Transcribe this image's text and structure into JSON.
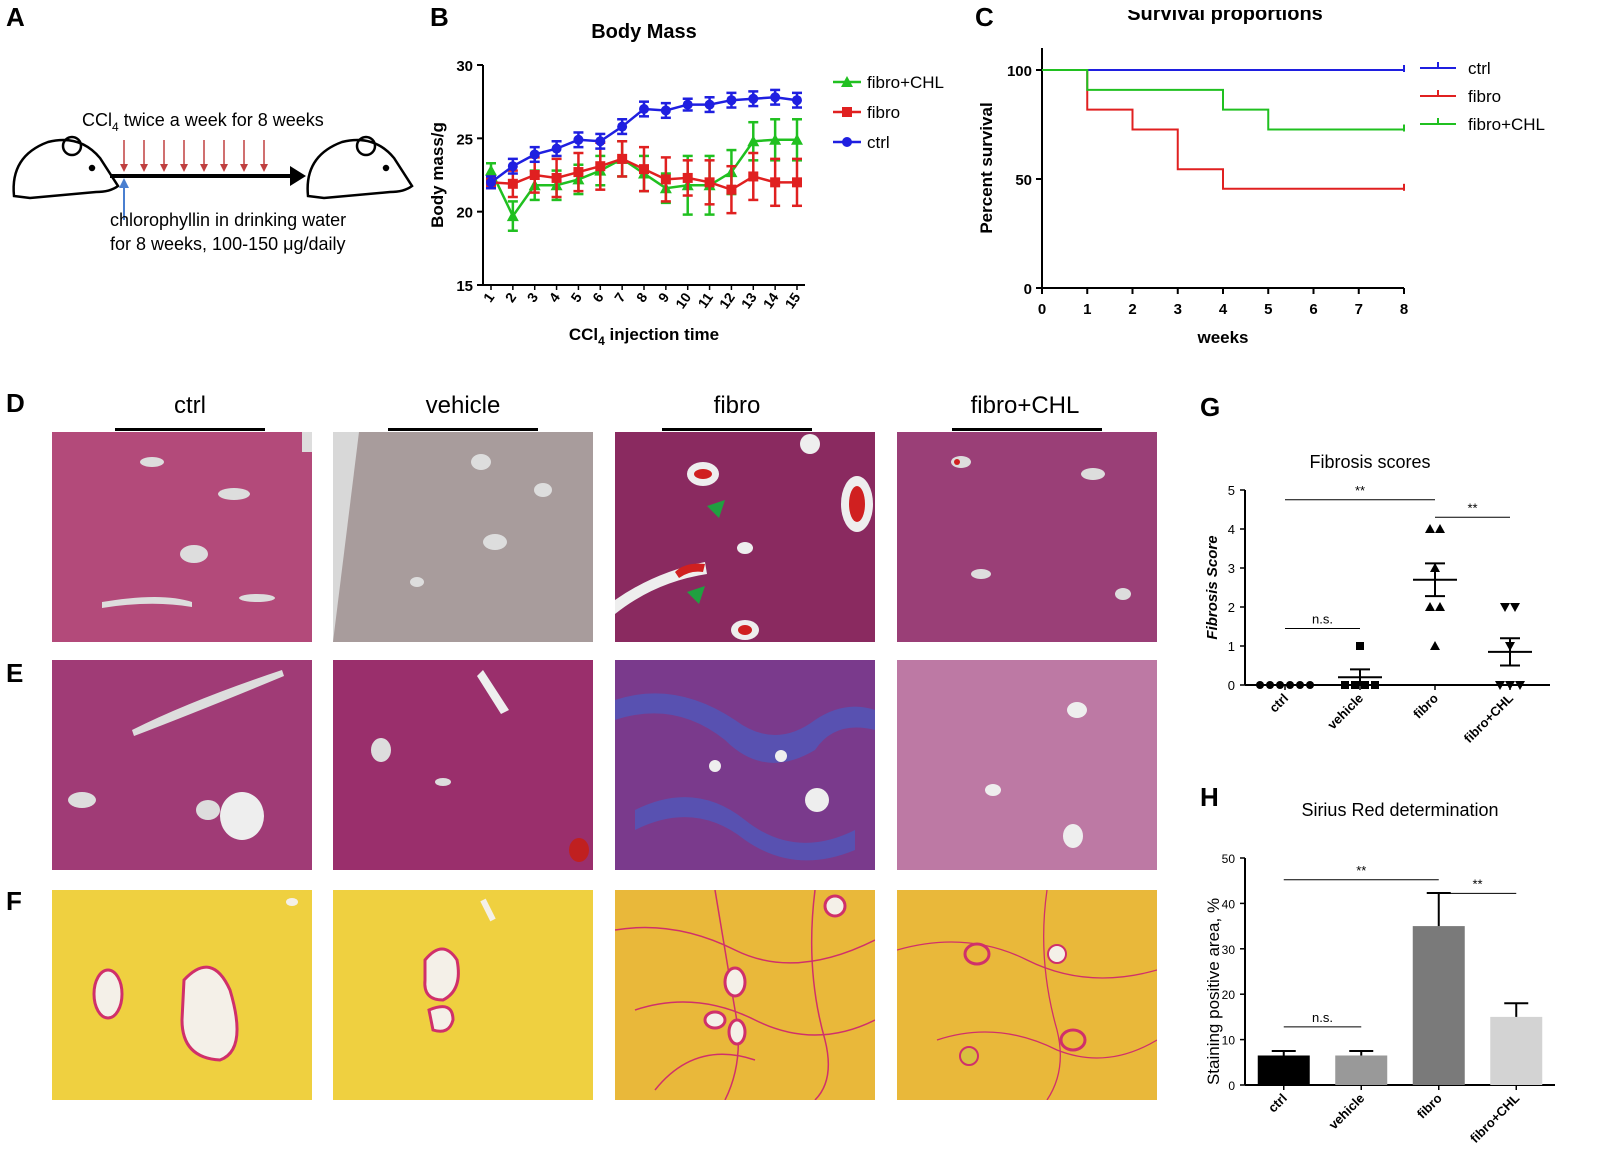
{
  "panel_labels": [
    "A",
    "B",
    "C",
    "D",
    "E",
    "F",
    "G",
    "H"
  ],
  "panel_a": {
    "top_text": "CCl",
    "top_sub": "4",
    "top_rest": " twice a week for 8 weeks",
    "bottom_line1": "chlorophyllin in drinking water",
    "bottom_line2": "for 8 weeks, 100-150 μg/daily"
  },
  "columns": [
    "ctrl",
    "vehicle",
    "fibro",
    "fibro+CHL"
  ],
  "colors": {
    "ctrl": "#1f1fe0",
    "fibro": "#e02020",
    "fibro_chl": "#20c020"
  },
  "chart_data": [
    {
      "panel": "B",
      "type": "line",
      "title": "Body Mass",
      "ylabel": "Body mass/g",
      "xlabel_main": "CCl",
      "xlabel_sub": "4",
      "xlabel_rest": " injection time",
      "x": [
        1,
        2,
        3,
        4,
        5,
        6,
        7,
        8,
        9,
        10,
        11,
        12,
        13,
        14,
        15
      ],
      "ylim": [
        15,
        30
      ],
      "yticks": [
        15,
        20,
        25,
        30
      ],
      "series": [
        {
          "name": "fibro+CHL",
          "color": "#20c020",
          "marker": "triangle",
          "values": [
            22.8,
            19.7,
            21.8,
            21.8,
            22.2,
            22.8,
            23.6,
            22.6,
            21.6,
            21.8,
            21.8,
            22.7,
            24.8,
            24.9,
            24.9
          ],
          "err": [
            0.5,
            1.0,
            1.0,
            1.0,
            1.0,
            1.0,
            1.2,
            1.2,
            1.0,
            2.0,
            2.0,
            1.5,
            1.3,
            1.4,
            1.4
          ]
        },
        {
          "name": "fibro",
          "color": "#e02020",
          "marker": "square",
          "values": [
            22.0,
            21.9,
            22.5,
            22.3,
            22.7,
            23.1,
            23.6,
            22.9,
            22.2,
            22.3,
            22.0,
            21.5,
            22.4,
            22.0,
            22.0
          ],
          "err": [
            0.4,
            0.9,
            1.2,
            1.3,
            1.3,
            1.6,
            1.2,
            1.5,
            1.5,
            1.2,
            1.5,
            1.6,
            1.6,
            1.6,
            1.6
          ]
        },
        {
          "name": "ctrl",
          "color": "#1f1fe0",
          "marker": "circle",
          "values": [
            22.0,
            23.1,
            23.9,
            24.3,
            24.9,
            24.8,
            25.8,
            27.0,
            26.9,
            27.3,
            27.3,
            27.6,
            27.7,
            27.8,
            27.6
          ],
          "err": [
            0.4,
            0.5,
            0.5,
            0.5,
            0.5,
            0.5,
            0.5,
            0.5,
            0.5,
            0.4,
            0.5,
            0.5,
            0.5,
            0.5,
            0.5
          ]
        }
      ]
    },
    {
      "panel": "C",
      "type": "line",
      "title": "Survival proportions",
      "ylabel": "Percent survival",
      "xlabel": "weeks",
      "xlim": [
        0,
        8
      ],
      "ylim": [
        0,
        100
      ],
      "xticks": [
        0,
        1,
        2,
        3,
        4,
        5,
        6,
        7,
        8
      ],
      "yticks": [
        0,
        50,
        100
      ],
      "series": [
        {
          "name": "ctrl",
          "color": "#1f1fe0",
          "steps": [
            [
              0,
              100
            ],
            [
              8,
              100
            ]
          ]
        },
        {
          "name": "fibro",
          "color": "#e02020",
          "steps": [
            [
              0,
              100
            ],
            [
              1,
              81.8
            ],
            [
              2,
              72.7
            ],
            [
              3,
              54.5
            ],
            [
              4,
              45.5
            ],
            [
              8,
              45.5
            ]
          ]
        },
        {
          "name": "fibro+CHL",
          "color": "#20c020",
          "steps": [
            [
              0,
              100
            ],
            [
              1,
              90.9
            ],
            [
              4,
              81.8
            ],
            [
              5,
              72.7
            ],
            [
              8,
              72.7
            ]
          ]
        }
      ]
    },
    {
      "panel": "G",
      "type": "scatter",
      "title": "Fibrosis scores",
      "ylabel": "Fibrosis Score",
      "categories": [
        "ctrl",
        "vehicle",
        "fibro",
        "fibro+CHL"
      ],
      "ylim": [
        0,
        5
      ],
      "yticks": [
        0,
        1,
        2,
        3,
        4,
        5
      ],
      "points": [
        [
          0,
          0,
          0,
          0,
          0,
          0
        ],
        [
          0,
          0,
          0,
          0,
          1
        ],
        [
          4,
          4,
          3,
          2,
          2,
          1
        ],
        [
          2,
          2,
          1,
          0,
          0,
          0
        ]
      ],
      "means": [
        0,
        0.2,
        2.7,
        0.85
      ],
      "sem": [
        0,
        0.2,
        0.42,
        0.35
      ],
      "annotations": [
        {
          "from": 0,
          "to": 2,
          "text": "**"
        },
        {
          "from": 2,
          "to": 3,
          "text": "**"
        },
        {
          "from": 0,
          "to": 1,
          "text": "n.s."
        }
      ]
    },
    {
      "panel": "H",
      "type": "bar",
      "title": "Sirius Red determination",
      "ylabel": "Staining positive area, %",
      "categories": [
        "ctrl",
        "vehicle",
        "fibro",
        "fibro+CHL"
      ],
      "values": [
        6.5,
        6.5,
        35,
        15
      ],
      "err": [
        1.0,
        1.0,
        7.3,
        3.0
      ],
      "bar_colors": [
        "#000000",
        "#999999",
        "#7a7a7a",
        "#d3d3d3"
      ],
      "ylim": [
        0,
        50
      ],
      "yticks": [
        0,
        10,
        20,
        30,
        40,
        50
      ],
      "annotations": [
        {
          "from": 0,
          "to": 2,
          "text": "**"
        },
        {
          "from": 2,
          "to": 3,
          "text": "**"
        },
        {
          "from": 0,
          "to": 1,
          "text": "n.s."
        }
      ]
    }
  ]
}
